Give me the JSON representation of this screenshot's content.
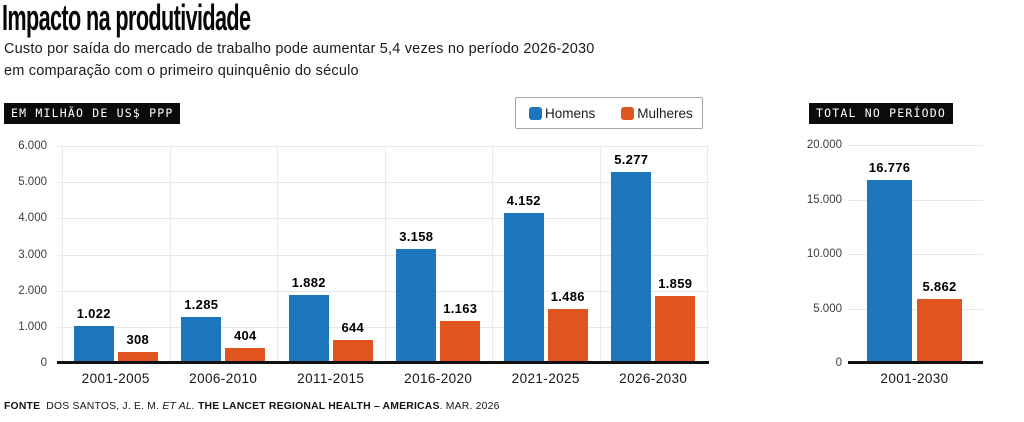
{
  "header": {
    "title": "Impacto na produtividade",
    "subtitle": "Custo por saída do mercado de trabalho pode aumentar 5,4 vezes no período 2026-2030\nem comparação com o primeiro quinquênio do século"
  },
  "colors": {
    "men": "#1D76BB",
    "women": "#E0551E",
    "badge_bg": "#0B0B0B",
    "gridline": "#E9E9E9",
    "axis_line": "#101010"
  },
  "chart_data": [
    {
      "type": "bar",
      "badge_label": "EM MILHÃO DE US$ PPP",
      "legend_position": "top",
      "grid": true,
      "categories": [
        "2001-2005",
        "2006-2010",
        "2011-2015",
        "2016-2020",
        "2021-2025",
        "2026-2030"
      ],
      "series": [
        {
          "name": "Homens",
          "color": "#1D76BB",
          "values": [
            1022,
            1285,
            1882,
            3158,
            4152,
            5277
          ],
          "labels": [
            "1.022",
            "1.285",
            "1.882",
            "3.158",
            "4.152",
            "5.277"
          ]
        },
        {
          "name": "Mulheres",
          "color": "#E0551E",
          "values": [
            308,
            404,
            644,
            1163,
            1486,
            1859
          ],
          "labels": [
            "308",
            "404",
            "644",
            "1.163",
            "1.486",
            "1.859"
          ]
        }
      ],
      "xlabel": "",
      "ylabel": "EM MILHÃO DE US$ PPP",
      "ylim": [
        0,
        6000
      ],
      "yticks": [
        {
          "value": 0,
          "label": "0"
        },
        {
          "value": 1000,
          "label": "1.000"
        },
        {
          "value": 2000,
          "label": "2.000"
        },
        {
          "value": 3000,
          "label": "3.000"
        },
        {
          "value": 4000,
          "label": "4.000"
        },
        {
          "value": 5000,
          "label": "5.000"
        },
        {
          "value": 6000,
          "label": "6.000"
        }
      ]
    },
    {
      "type": "bar",
      "badge_label": "TOTAL NO PERÍODO",
      "grid": true,
      "categories": [
        "2001-2030"
      ],
      "series": [
        {
          "name": "Homens",
          "color": "#1D76BB",
          "values": [
            16776
          ],
          "labels": [
            "16.776"
          ]
        },
        {
          "name": "Mulheres",
          "color": "#E0551E",
          "values": [
            5862
          ],
          "labels": [
            "5.862"
          ]
        }
      ],
      "xlabel": "",
      "ylabel": "",
      "ylim": [
        0,
        20000
      ],
      "yticks": [
        {
          "value": 0,
          "label": "0"
        },
        {
          "value": 5000,
          "label": "5.000"
        },
        {
          "value": 10000,
          "label": "10.000"
        },
        {
          "value": 15000,
          "label": "15.000"
        },
        {
          "value": 20000,
          "label": "20.000"
        }
      ]
    }
  ],
  "footer": {
    "parts": [
      {
        "text": "FONTE",
        "style": "bold"
      },
      {
        "text": " DOS SANTOS, J. E. M. ",
        "style": "regular"
      },
      {
        "text": "ET AL.",
        "style": "italic"
      },
      {
        "text": " ",
        "style": "regular"
      },
      {
        "text": "THE LANCET REGIONAL HEALTH – AMERICAS",
        "style": "bold"
      },
      {
        "text": ". MAR. 2026",
        "style": "regular"
      }
    ]
  }
}
